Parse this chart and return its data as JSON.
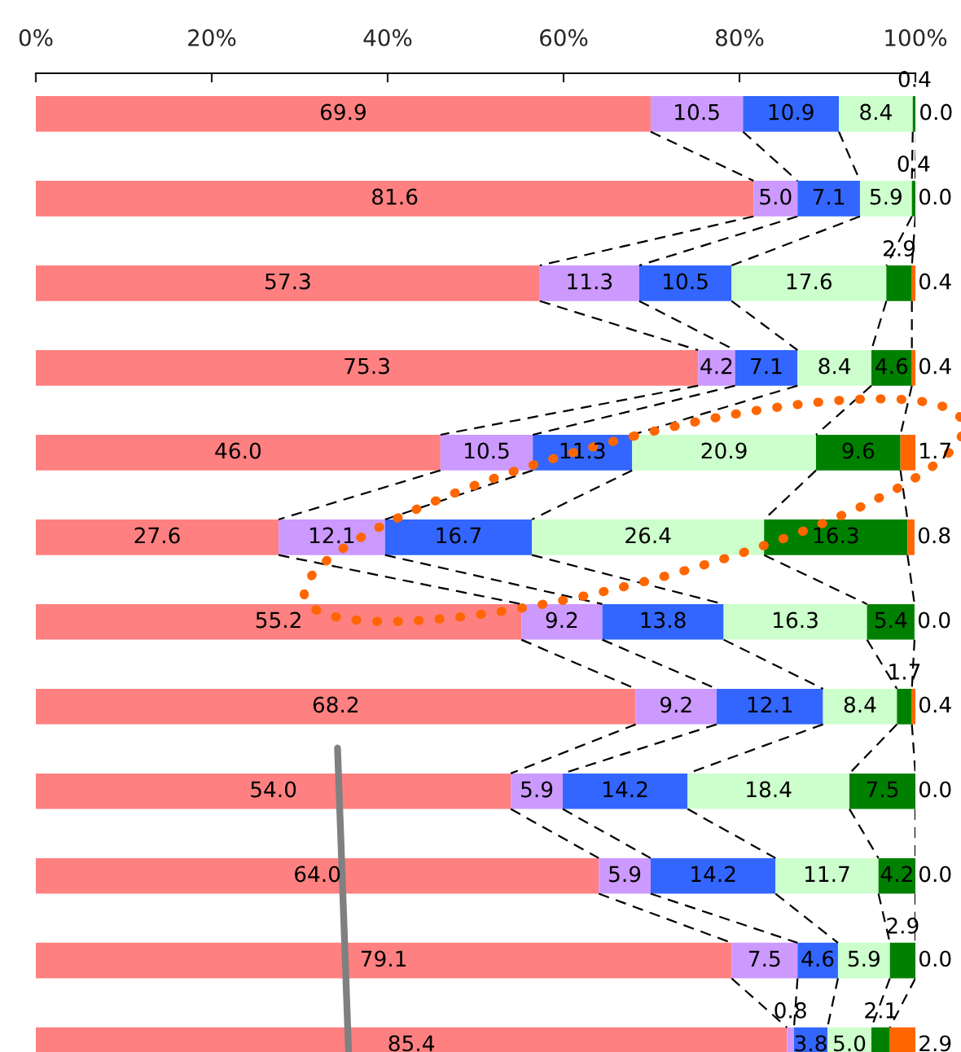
{
  "chart_data": {
    "type": "bar",
    "orientation": "horizontal",
    "stacked": true,
    "categories": [
      null,
      null,
      null,
      null,
      null,
      null,
      null,
      null,
      null,
      null,
      null,
      null
    ],
    "series": [
      {
        "color": "#ff8080",
        "values": [
          69.9,
          81.6,
          57.3,
          75.3,
          46.0,
          27.6,
          55.2,
          68.2,
          54.0,
          64.0,
          79.1,
          85.4
        ],
        "value_labels": [
          "69.9",
          "81.6",
          "57.3",
          "75.3",
          "46.0",
          "27.6",
          "55.2",
          "68.2",
          "54.0",
          "64.0",
          "79.1",
          "85.4"
        ]
      },
      {
        "color": "#cc99ff",
        "values": [
          10.5,
          5.0,
          11.3,
          4.2,
          10.5,
          12.1,
          9.2,
          9.2,
          5.9,
          5.9,
          7.5,
          0.8
        ],
        "value_labels": [
          "10.5",
          "5.0",
          "11.3",
          "4.2",
          "10.5",
          "12.1",
          "9.2",
          "9.2",
          "5.9",
          "5.9",
          "7.5",
          "0.8"
        ]
      },
      {
        "color": "#3366ff",
        "values": [
          10.9,
          7.1,
          10.5,
          7.1,
          11.3,
          16.7,
          13.8,
          12.1,
          14.2,
          14.2,
          4.6,
          3.8
        ],
        "value_labels": [
          "10.9",
          "7.1",
          "10.5",
          "7.1",
          "11.3",
          "16.7",
          "13.8",
          "12.1",
          "14.2",
          "14.2",
          "4.6",
          "3.8"
        ]
      },
      {
        "color": "#ccffcc",
        "values": [
          8.4,
          5.9,
          17.6,
          8.4,
          20.9,
          26.4,
          16.3,
          8.4,
          18.4,
          11.7,
          5.9,
          5.0
        ],
        "value_labels": [
          "8.4",
          "5.9",
          "17.6",
          "8.4",
          "20.9",
          "26.4",
          "16.3",
          "8.4",
          "18.4",
          "11.7",
          "5.9",
          "5.0"
        ]
      },
      {
        "color": "#008000",
        "values": [
          0.4,
          0.4,
          2.9,
          4.6,
          9.6,
          16.3,
          5.4,
          1.7,
          7.5,
          4.2,
          2.9,
          2.1
        ],
        "value_labels": [
          "0.4",
          "0.4",
          "2.9",
          "4.6",
          "9.6",
          "16.3",
          "5.4",
          "1.7",
          "7.5",
          "4.2",
          "2.9",
          "2.1"
        ]
      },
      {
        "color": "#ff6600",
        "values": [
          0.0,
          0.0,
          0.4,
          0.4,
          1.7,
          0.8,
          0.0,
          0.4,
          0.0,
          0.0,
          0.0,
          2.9
        ],
        "value_labels": [
          "0.0",
          "0.0",
          "0.4",
          "0.4",
          "1.7",
          "0.8",
          "0.0",
          "0.4",
          "0.0",
          "0.0",
          "0.0",
          "2.9"
        ]
      }
    ],
    "xlim": [
      0,
      100
    ],
    "xticks": [
      {
        "value": 0,
        "label": "0%"
      },
      {
        "value": 20,
        "label": "20%"
      },
      {
        "value": 40,
        "label": "40%"
      },
      {
        "value": 60,
        "label": "60%"
      },
      {
        "value": 80,
        "label": "80%"
      },
      {
        "value": 100,
        "label": "100%"
      }
    ],
    "tick_labels": "x",
    "grid": false,
    "legend": false
  }
}
